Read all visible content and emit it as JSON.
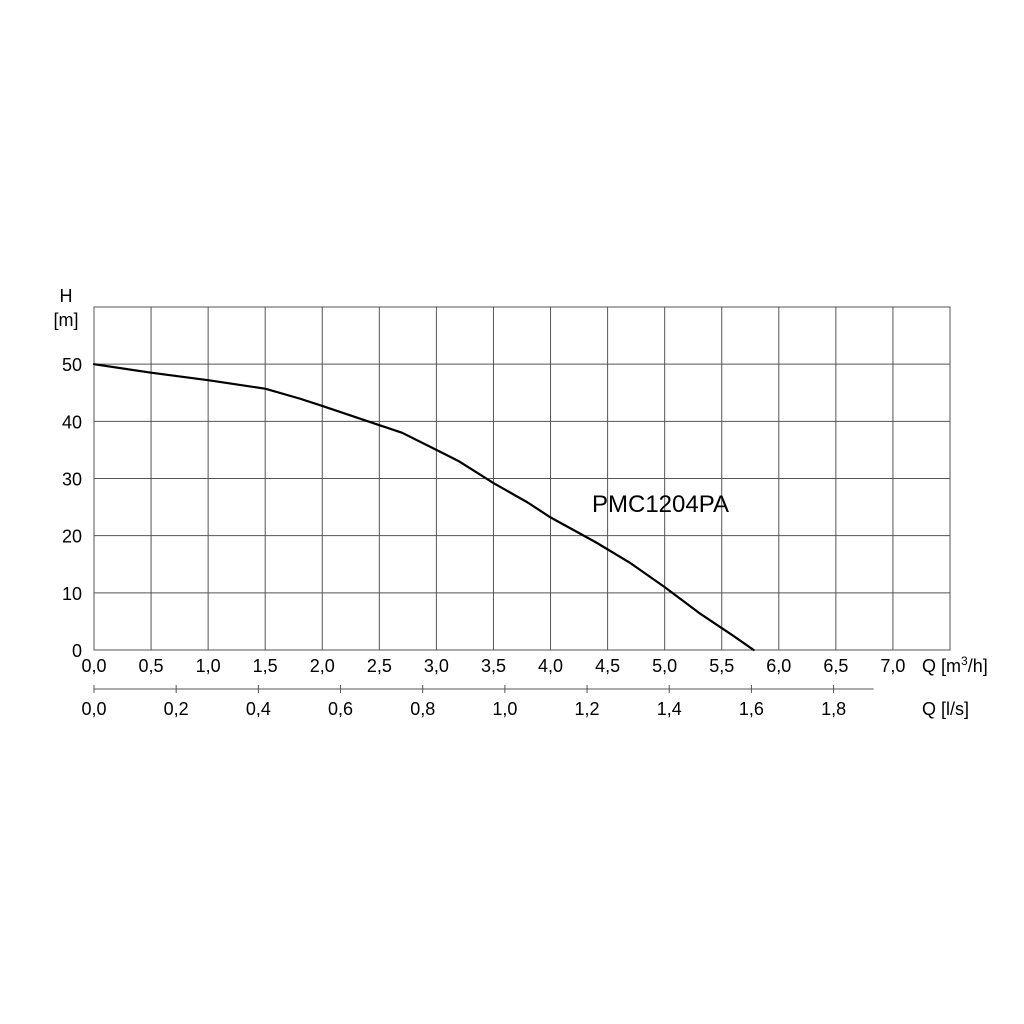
{
  "chart_data": {
    "type": "line",
    "annotation": "PMC1204PA",
    "ylabel_top": "H",
    "ylabel_unit": "[m]",
    "xlabel_primary": "Q [m³/h]",
    "xlabel_primary_prefix": "Q [m",
    "xlabel_primary_sup": "3",
    "xlabel_primary_suffix": "/h]",
    "xlabel_secondary": "Q [l/s]",
    "xlim": [
      0,
      7.5
    ],
    "ylim": [
      0,
      60
    ],
    "x_ticks": [
      0,
      0.5,
      1.0,
      1.5,
      2.0,
      2.5,
      3.0,
      3.5,
      4.0,
      4.5,
      5.0,
      5.5,
      6.0,
      6.5,
      7.0
    ],
    "x_tick_labels": [
      "0,0",
      "0,5",
      "1,0",
      "1,5",
      "2,0",
      "2,5",
      "3,0",
      "3,5",
      "4,0",
      "4,5",
      "5,0",
      "5,5",
      "6,0",
      "6,5",
      "7,0"
    ],
    "y_ticks": [
      0,
      10,
      20,
      30,
      40,
      50
    ],
    "y_tick_labels": [
      "0",
      "10",
      "20",
      "30",
      "40",
      "50"
    ],
    "secondary_ticks": [
      0,
      0.2,
      0.4,
      0.6,
      0.8,
      1.0,
      1.2,
      1.4,
      1.6,
      1.8
    ],
    "secondary_tick_labels": [
      "0,0",
      "0,2",
      "0,4",
      "0,6",
      "0,8",
      "1,0",
      "1,2",
      "1,4",
      "1,6",
      "1,8"
    ],
    "grid": true,
    "series": [
      {
        "x": [
          0.0,
          0.5,
          1.0,
          1.5,
          1.8,
          2.0,
          2.4,
          2.7,
          3.0,
          3.2,
          3.5,
          3.8,
          4.0,
          4.4,
          4.7,
          5.0,
          5.3,
          5.6,
          5.78
        ],
        "y": [
          50.0,
          48.5,
          47.2,
          45.7,
          44.0,
          42.7,
          40.0,
          38.0,
          35.0,
          33.0,
          29.2,
          25.8,
          23.2,
          18.8,
          15.2,
          11.0,
          6.5,
          2.5,
          0.0
        ]
      }
    ]
  }
}
